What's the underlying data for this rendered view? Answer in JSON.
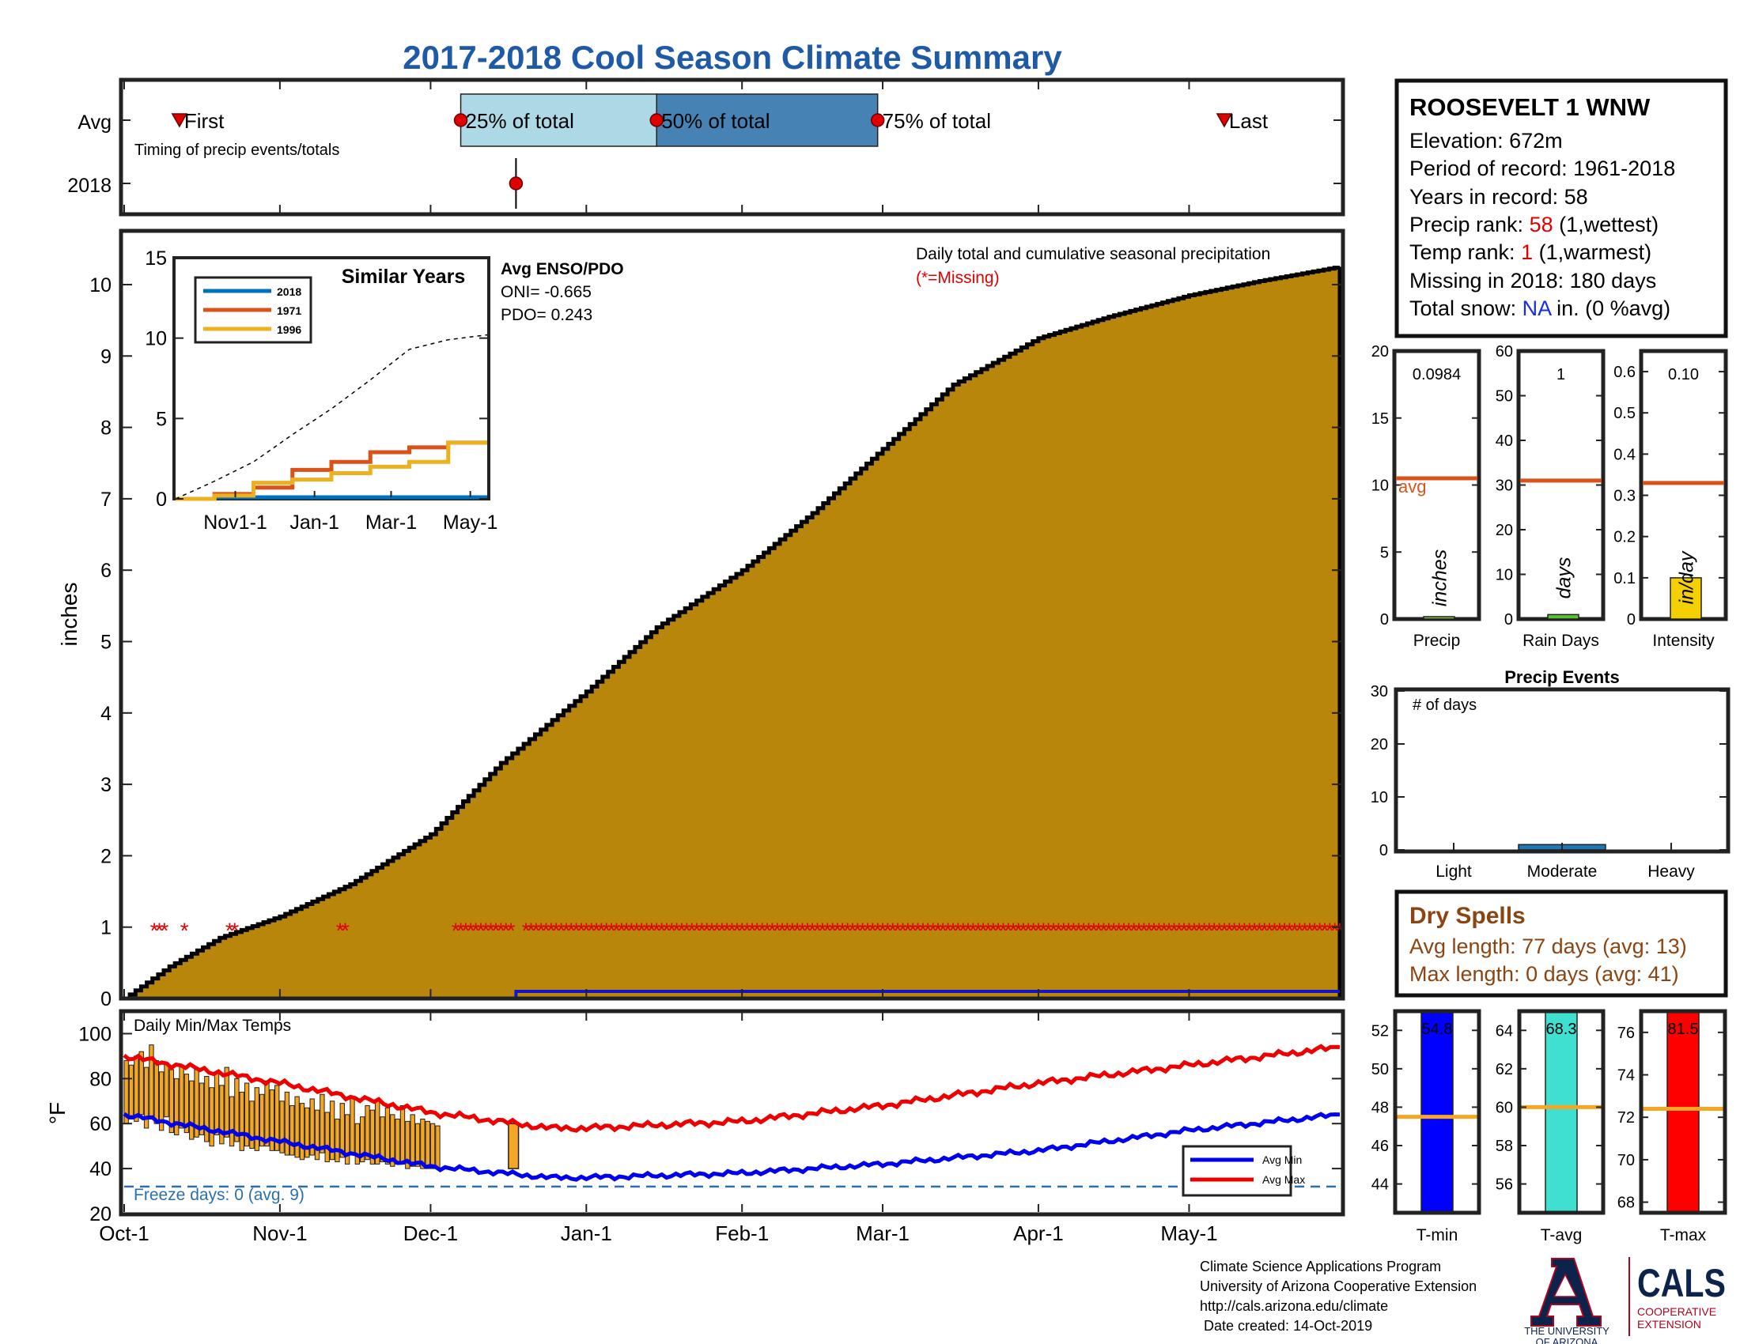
{
  "title": "2017-2018 Cool Season Climate Summary",
  "timing": {
    "row_labels": [
      "Avg",
      "2018"
    ],
    "caption": "Timing of precip events/totals",
    "markers": [
      {
        "label": "First",
        "date": "2017-10-12"
      },
      {
        "label": "25% of total",
        "date": "2017-12-07"
      },
      {
        "label": "50% of total",
        "date": "2018-01-15"
      },
      {
        "label": "75% of total",
        "date": "2018-02-28"
      },
      {
        "label": "Last",
        "date": "2018-05-08"
      }
    ],
    "marker_2018_date": "2017-12-18"
  },
  "station": {
    "name": "ROOSEVELT 1 WNW",
    "elevation": "Elevation: 672m",
    "period": "Period of record: 1961-2018",
    "years": "Years in record: 58",
    "precip_rank_label": "Precip rank: ",
    "precip_rank_value": "58",
    "precip_rank_note": " (1,wettest)",
    "temp_rank_label": "Temp rank: ",
    "temp_rank_value": "1",
    "temp_rank_note": " (1,warmest)",
    "missing": "Missing in 2018: 180 days",
    "snow_label": "Total snow: ",
    "snow_value": "NA",
    "snow_note": " in. (0 %avg)",
    "rank_color": "#e00000",
    "snow_color": "#1a2ee0"
  },
  "main_chart": {
    "ylabel": "inches",
    "annotation": "Daily total and cumulative seasonal precipitation",
    "missing_note": "(*=Missing)",
    "fill_color": "#b8860b",
    "date_ticks": [
      "Oct-1",
      "Nov-1",
      "Dec-1",
      "Jan-1",
      "Feb-1",
      "Mar-1",
      "Apr-1",
      "May-1"
    ]
  },
  "inset": {
    "title": "Similar Years",
    "legend": [
      "2018",
      "1971",
      "1996"
    ],
    "colors": [
      "#0072bd",
      "#d95319",
      "#edb120"
    ],
    "xticks": [
      "Nov1-1",
      "Jan-1",
      "Mar-1",
      "May-1"
    ],
    "yticks": [
      "0",
      "5",
      "10",
      "15"
    ],
    "enso_title": "Avg ENSO/PDO",
    "oni": "ONI= -0.665",
    "pdo": "PDO= 0.243"
  },
  "mini_bars": [
    {
      "label": "Precip",
      "unit": "inches",
      "value_text": "0.0984",
      "value": 0.0984,
      "avg": 10.5,
      "ymax": 20,
      "ticks": [
        "0",
        "5",
        "10",
        "15",
        "20"
      ],
      "bar_color": "#7fbf3f",
      "avg_label": "avg"
    },
    {
      "label": "Rain Days",
      "unit": "days",
      "value_text": "1",
      "value": 1,
      "avg": 31,
      "ymax": 60,
      "ticks": [
        "0",
        "10",
        "20",
        "30",
        "40",
        "50",
        "60"
      ],
      "bar_color": "#5cc034",
      "avg_label": ""
    },
    {
      "label": "Intensity",
      "unit": "in/day",
      "value_text": "0.10",
      "value": 0.1,
      "avg": 0.33,
      "ymax": 0.65,
      "ticks": [
        "0",
        "0.1",
        "0.2",
        "0.3",
        "0.4",
        "0.5",
        "0.6"
      ],
      "bar_color": "#f5d000",
      "avg_label": ""
    }
  ],
  "precip_events": {
    "title": "Precip Events",
    "ylabel_note": "# of days",
    "categories": [
      "Light",
      "Moderate",
      "Heavy"
    ],
    "values": [
      0,
      1,
      0
    ],
    "ymax": 30,
    "ticks": [
      "0",
      "10",
      "20",
      "30"
    ],
    "bar_color": "#1f77b4"
  },
  "dry_spells": {
    "title": "Dry Spells",
    "avg": "Avg length: 77 days (avg: 13)",
    "max": "Max length: 0 days (avg: 41)",
    "color": "#8b4513"
  },
  "temps": {
    "title": "Daily Min/Max Temps",
    "ylabel": "°F",
    "yticks": [
      "20",
      "40",
      "60",
      "80",
      "100"
    ],
    "freeze_note": "Freeze days: 0 (avg. 9)",
    "legend_min": "Avg Min",
    "legend_max": "Avg Max",
    "bar_color": "#f5a623",
    "min_color": "#0000ee",
    "max_color": "#ee0000"
  },
  "temp_bars": [
    {
      "label": "T-min",
      "value_text": "54.8",
      "avg": 47.5,
      "ymin": 42.5,
      "ymax": 53,
      "ticks": [
        "44",
        "46",
        "48",
        "50",
        "52"
      ],
      "color": "#0000ff"
    },
    {
      "label": "T-avg",
      "value_text": "68.3",
      "avg": 60,
      "ymin": 54.5,
      "ymax": 65,
      "ticks": [
        "56",
        "58",
        "60",
        "62",
        "64"
      ],
      "color": "#40e0d0"
    },
    {
      "label": "T-max",
      "value_text": "81.5",
      "avg": 72.4,
      "ymin": 67.5,
      "ymax": 77,
      "ticks": [
        "68",
        "70",
        "72",
        "74",
        "76"
      ],
      "color": "#ff0000"
    }
  ],
  "footer": {
    "lines": [
      "Climate Science Applications Program",
      "University of Arizona Cooperative Extension",
      "http://cals.arizona.edu/climate",
      " Date created: 14-Oct-2019"
    ],
    "ua_logo_text": [
      "THE UNIVERSITY",
      "OF ARIZONA"
    ],
    "cals_text": "CALS",
    "cals_sub": [
      "COOPERATIVE",
      "EXTENSION"
    ]
  },
  "chart_data": [
    {
      "type": "area",
      "title": "Daily total and cumulative seasonal precipitation",
      "ylabel": "inches",
      "ylim": [
        0,
        10.8
      ],
      "x_range": [
        "2017-10-01",
        "2018-05-31"
      ],
      "yticks": [
        0,
        1,
        2,
        3,
        4,
        5,
        6,
        7,
        8,
        9,
        10
      ],
      "series": [
        {
          "name": "",
          "x": [
            "2017-10-01",
            "2017-10-10",
            "2017-10-20",
            "2017-11-01",
            "2017-11-15",
            "2017-12-01",
            "2017-12-15",
            "2018-01-01",
            "2018-01-15",
            "2018-02-01",
            "2018-02-15",
            "2018-03-01",
            "2018-03-15",
            "2018-04-01",
            "2018-04-15",
            "2018-05-01",
            "2018-05-15",
            "2018-05-31"
          ],
          "y": [
            0,
            0.45,
            0.85,
            1.15,
            1.6,
            2.3,
            3.3,
            4.3,
            5.2,
            6.0,
            6.8,
            7.7,
            8.6,
            9.25,
            9.55,
            9.85,
            10.05,
            10.25
          ]
        },
        {
          "name": "",
          "x": [
            "2017-12-18",
            "2018-05-31"
          ],
          "y": [
            0.1,
            0.1
          ]
        }
      ],
      "missing_markers_y": 1,
      "missing_ranges": [
        [
          "2017-10-07",
          "2017-10-09"
        ],
        [
          "2017-10-13",
          "2017-10-13"
        ],
        [
          "2017-10-22",
          "2017-10-23"
        ],
        [
          "2017-11-13",
          "2017-11-14"
        ],
        [
          "2017-12-06",
          "2017-12-17"
        ],
        [
          "2017-12-20",
          "2018-05-31"
        ]
      ]
    },
    {
      "type": "line",
      "title": "Similar Years",
      "ylim": [
        0,
        15
      ],
      "x": [
        0,
        30,
        60,
        90,
        120,
        150,
        180,
        210,
        240
      ],
      "series": [
        {
          "name": "2018",
          "y": [
            0,
            0.1,
            0.1,
            0.1,
            0.1,
            0.1,
            0.1,
            0.1,
            0.1
          ]
        },
        {
          "name": "1971",
          "y": [
            0,
            0.3,
            0.7,
            1.8,
            2.3,
            2.9,
            3.2,
            3.5,
            3.5
          ]
        },
        {
          "name": "1996",
          "y": [
            0,
            0.2,
            1.0,
            1.2,
            1.6,
            2.0,
            2.3,
            3.5,
            3.5
          ]
        },
        {
          "name": "",
          "y": [
            0,
            1.1,
            2.3,
            4.0,
            5.6,
            7.4,
            9.3,
            9.9,
            10.2
          ]
        }
      ]
    },
    {
      "type": "bar",
      "title": "Precip Events",
      "categories": [
        "Light",
        "Moderate",
        "Heavy"
      ],
      "values": [
        0,
        1,
        0
      ],
      "ylim": [
        0,
        30
      ]
    },
    {
      "type": "line",
      "title": "Daily Min/Max Temps",
      "ylabel": "°F",
      "ylim": [
        20,
        110
      ],
      "x": [
        "2017-10-01",
        "2017-11-01",
        "2017-12-01",
        "2017-12-25",
        "2018-01-01",
        "2018-02-01",
        "2018-03-01",
        "2018-04-01",
        "2018-05-01",
        "2018-05-31"
      ],
      "series": [
        {
          "name": "Avg Min",
          "y": [
            64,
            52,
            41,
            36,
            36,
            38,
            42,
            48,
            57,
            64
          ]
        },
        {
          "name": "Avg Max",
          "y": [
            90,
            78,
            65,
            58,
            58,
            61,
            68,
            78,
            86,
            94
          ]
        }
      ],
      "daily_bars": {
        "x_start": "2017-10-01",
        "ranges": [
          [
            88,
            60
          ],
          [
            86,
            62
          ],
          [
            90,
            61
          ],
          [
            92,
            64
          ],
          [
            85,
            58
          ],
          [
            95,
            62
          ],
          [
            88,
            60
          ],
          [
            83,
            57
          ],
          [
            87,
            63
          ],
          [
            84,
            56
          ],
          [
            80,
            55
          ],
          [
            86,
            58
          ],
          [
            82,
            56
          ],
          [
            79,
            53
          ],
          [
            84,
            54
          ],
          [
            78,
            55
          ],
          [
            81,
            52
          ],
          [
            76,
            50
          ],
          [
            83,
            55
          ],
          [
            77,
            51
          ],
          [
            85,
            54
          ],
          [
            72,
            50
          ],
          [
            80,
            52
          ],
          [
            74,
            48
          ],
          [
            78,
            50
          ],
          [
            70,
            49
          ],
          [
            76,
            48
          ],
          [
            73,
            50
          ],
          [
            79,
            50
          ],
          [
            75,
            48
          ],
          [
            77,
            48
          ],
          [
            70,
            47
          ],
          [
            74,
            46
          ],
          [
            68,
            46
          ],
          [
            72,
            45
          ],
          [
            69,
            44
          ],
          [
            67,
            45
          ],
          [
            71,
            46
          ],
          [
            66,
            44
          ],
          [
            73,
            47
          ],
          [
            65,
            43
          ],
          [
            70,
            44
          ],
          [
            62,
            43
          ],
          [
            69,
            45
          ],
          [
            64,
            42
          ],
          [
            72,
            46
          ],
          [
            60,
            42
          ],
          [
            63,
            43
          ],
          [
            68,
            44
          ],
          [
            66,
            42
          ],
          [
            70,
            42
          ],
          [
            63,
            43
          ],
          [
            67,
            42
          ],
          [
            64,
            41
          ],
          [
            62,
            42
          ],
          [
            68,
            42
          ],
          [
            61,
            40
          ],
          [
            64,
            41
          ],
          [
            60,
            41
          ],
          [
            62,
            40
          ],
          [
            61,
            40
          ],
          [
            60,
            40
          ],
          [
            59,
            40
          ]
        ],
        "extra": [
          {
            "date": "2017-12-18",
            "range": [
              60,
              40
            ]
          }
        ]
      },
      "freeze_line": 32
    }
  ]
}
